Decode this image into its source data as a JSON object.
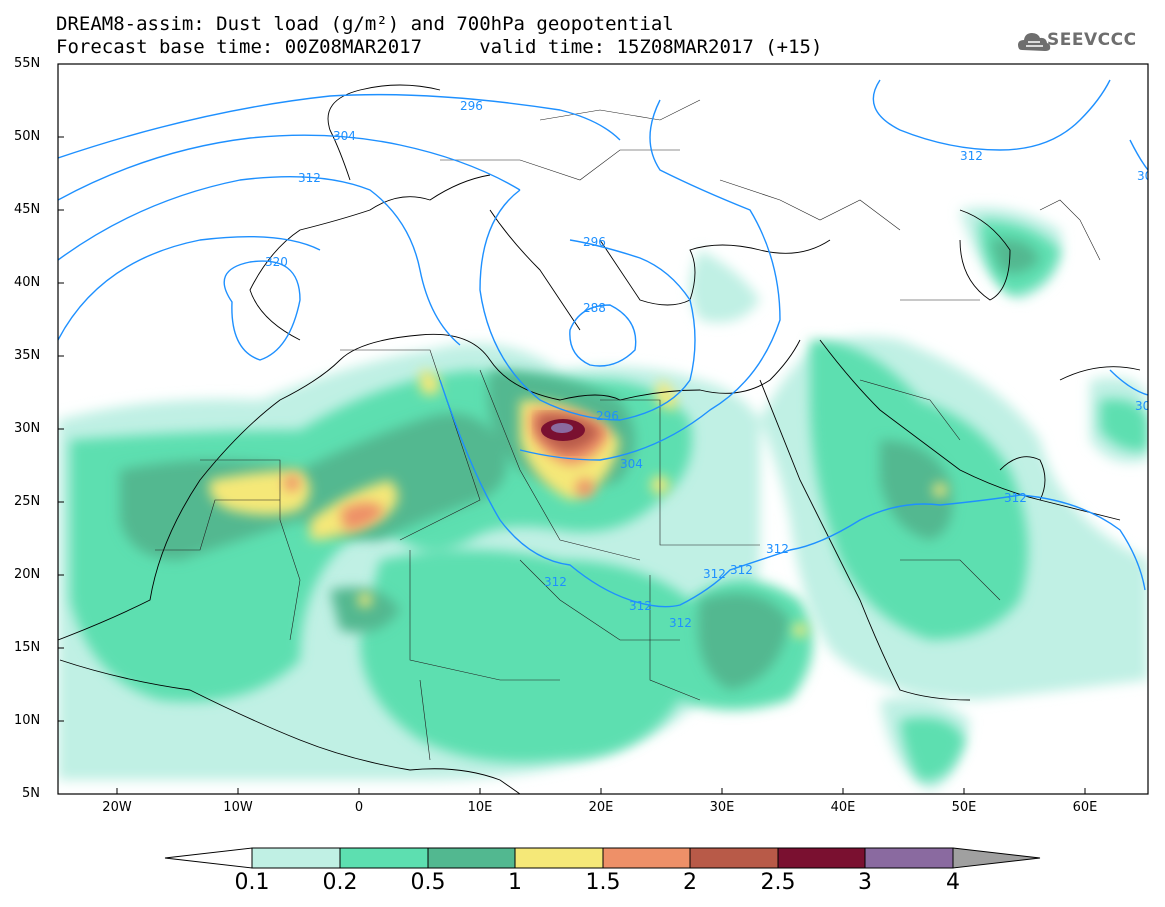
{
  "header": {
    "line1": "DREAM8-assim: Dust load (g/m²) and 700hPa geopotential",
    "line2": "Forecast base time: 00Z08MAR2017     valid time: 15Z08MAR2017 (+15)"
  },
  "logo": {
    "text": "SEEVCCC",
    "icon": "cloud-icon"
  },
  "map": {
    "lat_labels": [
      "55N",
      "50N",
      "45N",
      "40N",
      "35N",
      "30N",
      "25N",
      "20N",
      "15N",
      "10N",
      "5N"
    ],
    "lon_labels": [
      "20W",
      "10W",
      "0",
      "10E",
      "20E",
      "30E",
      "40E",
      "50E",
      "60E"
    ],
    "contour_labels": [
      "296",
      "304",
      "312",
      "320",
      "296",
      "288",
      "296",
      "304",
      "312",
      "312",
      "312",
      "312",
      "312",
      "312",
      "312",
      "312",
      "30",
      "30"
    ],
    "contour_color": "#1e90ff"
  },
  "colorbar": {
    "labels": [
      "0.1",
      "0.2",
      "0.5",
      "1",
      "1.5",
      "2",
      "2.5",
      "3",
      "4"
    ],
    "colors": [
      "#c0f0e4",
      "#5ddfb0",
      "#52b890",
      "#f5e878",
      "#ee9068",
      "#b85a48",
      "#7a1030",
      "#8a6aa0",
      "#a0a0a0"
    ]
  }
}
